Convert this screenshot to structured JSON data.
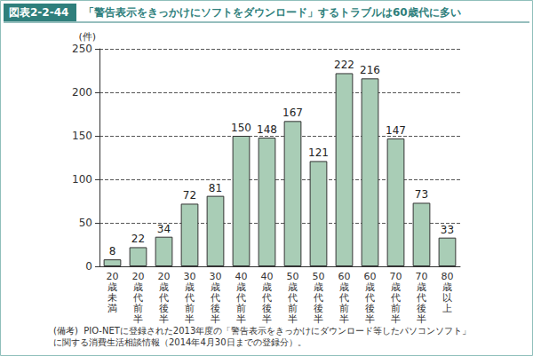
{
  "chart_data": {
    "type": "bar",
    "figure_label": "図表2-2-44",
    "title": "「警告表示をきっかけにソフトをダウンロード」するトラブルは60歳代に多い",
    "y_label": "(件)",
    "categories": [
      "20歳未満",
      "20歳代前半",
      "20歳代後半",
      "30歳代前半",
      "30歳代後半",
      "40歳代前半",
      "40歳代後半",
      "50歳代前半",
      "50歳代後半",
      "60歳代前半",
      "60歳代後半",
      "70歳代前半",
      "70歳代後半",
      "80歳以上"
    ],
    "values": [
      8,
      22,
      34,
      72,
      81,
      150,
      148,
      167,
      121,
      222,
      216,
      147,
      73,
      33
    ],
    "color": "#a9cdb6",
    "ylim": [
      0,
      250
    ],
    "yticks": [
      0,
      50,
      100,
      150,
      200,
      250
    ],
    "grid": true,
    "data_labels": true,
    "note": "(備考)  PIO-NETに登録された2013年度の「警告表示をきっかけにダウンロード等したパソコンソフト」に関する消費生活相談情報（2014年4月30日までの登録分）。"
  }
}
